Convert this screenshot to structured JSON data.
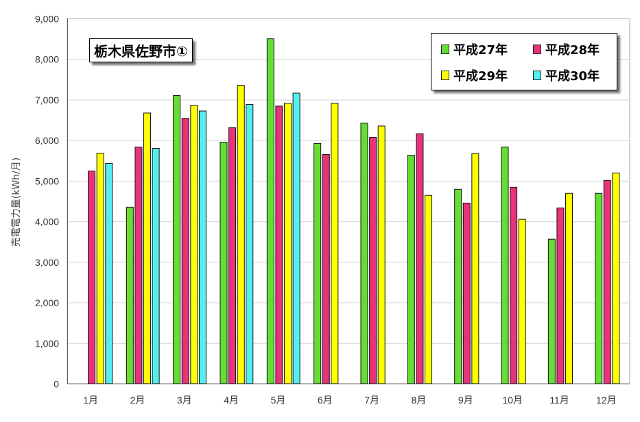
{
  "chart_data": {
    "type": "bar",
    "title": "栃木県佐野市①",
    "ylabel": "売電電力量(kWh/月)",
    "xlabel": "",
    "ylim": [
      0,
      9000
    ],
    "yticks": [
      0,
      1000,
      2000,
      3000,
      4000,
      5000,
      6000,
      7000,
      8000,
      9000
    ],
    "ytick_labels": [
      "0",
      "1,000",
      "2,000",
      "3,000",
      "4,000",
      "5,000",
      "6,000",
      "7,000",
      "8,000",
      "9,000"
    ],
    "grid": true,
    "legend_position": "top-right",
    "categories": [
      "1月",
      "2月",
      "3月",
      "4月",
      "5月",
      "6月",
      "7月",
      "8月",
      "9月",
      "10月",
      "11月",
      "12月"
    ],
    "series": [
      {
        "name": "平成27年",
        "color": "#66dd33",
        "values": [
          null,
          4350,
          7100,
          5950,
          8500,
          5920,
          6420,
          5630,
          4790,
          5830,
          3560,
          4690
        ]
      },
      {
        "name": "平成28年",
        "color": "#e6337a",
        "values": [
          5240,
          5830,
          6540,
          6310,
          6840,
          5650,
          6070,
          6160,
          4450,
          4840,
          4330,
          5010
        ]
      },
      {
        "name": "平成29年",
        "color": "#ffff00",
        "values": [
          5680,
          6670,
          6860,
          7350,
          6910,
          6910,
          6350,
          4640,
          5670,
          4050,
          4690,
          5190
        ]
      },
      {
        "name": "平成30年",
        "color": "#55eeee",
        "values": [
          5430,
          5800,
          6720,
          6880,
          7160,
          null,
          null,
          null,
          null,
          null,
          null,
          null
        ]
      }
    ]
  }
}
